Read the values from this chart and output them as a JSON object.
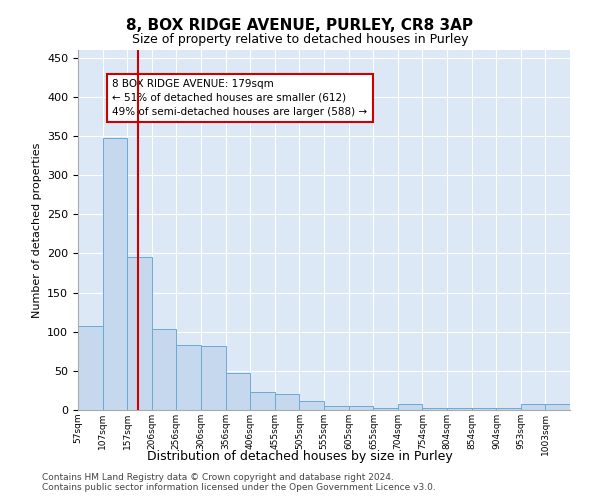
{
  "title": "8, BOX RIDGE AVENUE, PURLEY, CR8 3AP",
  "subtitle": "Size of property relative to detached houses in Purley",
  "xlabel": "Distribution of detached houses by size in Purley",
  "ylabel": "Number of detached properties",
  "bar_edges": [
    57,
    107,
    157,
    206,
    256,
    306,
    356,
    406,
    455,
    505,
    555,
    605,
    655,
    704,
    754,
    804,
    854,
    904,
    953,
    1003,
    1053
  ],
  "bar_heights": [
    107,
    348,
    195,
    103,
    83,
    82,
    47,
    23,
    21,
    11,
    5,
    5,
    3,
    8,
    2,
    2,
    2,
    2,
    8,
    8
  ],
  "bar_color": "#c5d8ed",
  "bar_edge_color": "#6aaad4",
  "vline_x": 179,
  "vline_color": "#cc0000",
  "annotation_text": "8 BOX RIDGE AVENUE: 179sqm\n← 51% of detached houses are smaller (612)\n49% of semi-detached houses are larger (588) →",
  "annotation_box_color": "#cc0000",
  "footnote1": "Contains HM Land Registry data © Crown copyright and database right 2024.",
  "footnote2": "Contains public sector information licensed under the Open Government Licence v3.0.",
  "ylim": [
    0,
    460
  ],
  "yticks": [
    0,
    50,
    100,
    150,
    200,
    250,
    300,
    350,
    400,
    450
  ],
  "background_color": "#dce8f5",
  "fig_background": "#ffffff",
  "grid_color": "#ffffff"
}
